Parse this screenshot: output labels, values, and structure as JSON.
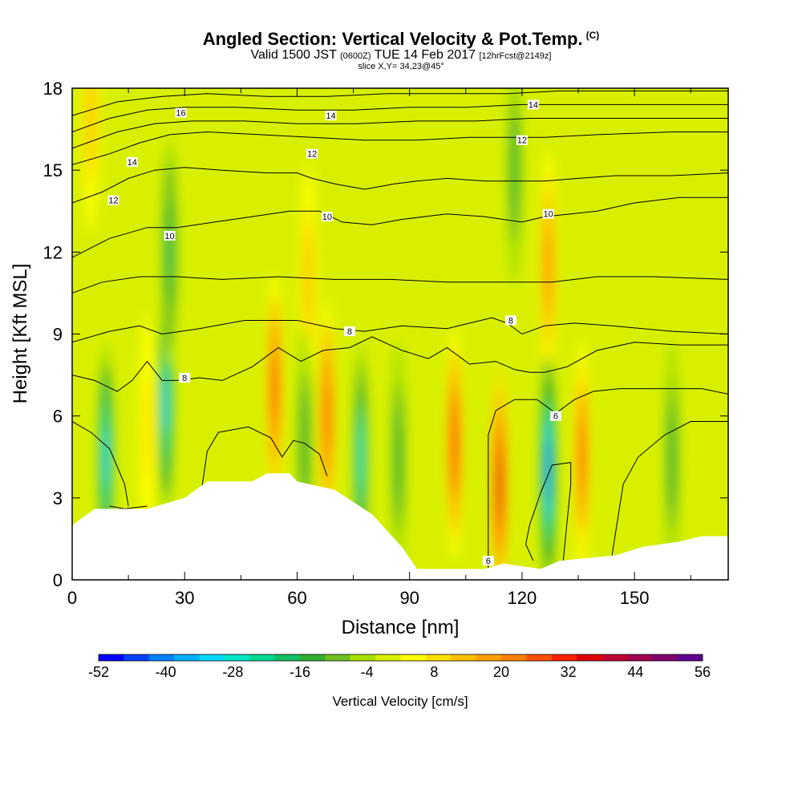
{
  "title": {
    "main": "Angled Section: Vertical Velocity & Pot.Temp.",
    "main_unit": "(C)",
    "valid_prefix": "Valid 1500 JST",
    "valid_z": "(0600Z)",
    "valid_date": "TUE 14 Feb 2017",
    "fcst": "[12hrFcst@2149z]",
    "slice": "slice X,Y= 34,23@45°"
  },
  "chart_data": {
    "type": "heatmap",
    "xlabel": "Distance [nm]",
    "ylabel": "Height [Kft MSL]",
    "xlim": [
      0,
      175
    ],
    "ylim": [
      0,
      18
    ],
    "x_ticks": [
      "0",
      "30",
      "60",
      "90",
      "120",
      "150"
    ],
    "y_ticks": [
      "0",
      "3",
      "6",
      "9",
      "12",
      "15",
      "18"
    ],
    "colorbar": {
      "label": "Vertical Velocity [cm/s]",
      "ticks": [
        "-52",
        "-40",
        "-28",
        "-16",
        "-4",
        "8",
        "20",
        "32",
        "44",
        "56"
      ],
      "min": -52,
      "max": 56,
      "colors": [
        "#0000ff",
        "#0040ff",
        "#0080ff",
        "#00b0ff",
        "#00d8ff",
        "#00e6c8",
        "#00d890",
        "#10c060",
        "#30b030",
        "#70c020",
        "#a8e000",
        "#d8f000",
        "#ffff00",
        "#ffe000",
        "#ffc000",
        "#ffa000",
        "#ff8000",
        "#ff5000",
        "#ff2000",
        "#e00000",
        "#c00030",
        "#a00050",
        "#800070",
        "#600090"
      ]
    },
    "terrain_kft": [
      [
        0,
        2.0
      ],
      [
        3,
        2.3
      ],
      [
        6,
        2.6
      ],
      [
        20,
        2.6
      ],
      [
        30,
        3.0
      ],
      [
        33,
        3.3
      ],
      [
        36,
        3.6
      ],
      [
        48,
        3.6
      ],
      [
        52,
        3.9
      ],
      [
        58,
        3.9
      ],
      [
        60,
        3.6
      ],
      [
        70,
        3.3
      ],
      [
        80,
        2.4
      ],
      [
        88,
        1.2
      ],
      [
        92,
        0.4
      ],
      [
        110,
        0.4
      ],
      [
        115,
        0.6
      ],
      [
        125,
        0.4
      ],
      [
        130,
        0.7
      ],
      [
        145,
        0.9
      ],
      [
        152,
        1.2
      ],
      [
        162,
        1.4
      ],
      [
        168,
        1.6
      ],
      [
        175,
        1.6
      ]
    ],
    "updraft_cores": [
      {
        "x": 20,
        "z": 5.5,
        "value": 10
      },
      {
        "x": 54,
        "z": 7.0,
        "value": 30
      },
      {
        "x": 63,
        "z": 11.0,
        "value": 14
      },
      {
        "x": 68,
        "z": 6.0,
        "value": 28
      },
      {
        "x": 102,
        "z": 5.0,
        "value": 32
      },
      {
        "x": 114,
        "z": 3.5,
        "value": 36
      },
      {
        "x": 127,
        "z": 11.5,
        "value": 24
      },
      {
        "x": 136,
        "z": 4.5,
        "value": 26
      },
      {
        "x": 5,
        "z": 17.0,
        "value": 14
      }
    ],
    "downdraft_cores": [
      {
        "x": 9,
        "z": 4.5,
        "value": -30
      },
      {
        "x": 25,
        "z": 6.5,
        "value": -30
      },
      {
        "x": 26,
        "z": 12.0,
        "value": -18
      },
      {
        "x": 62,
        "z": 5.0,
        "value": -16
      },
      {
        "x": 77,
        "z": 4.5,
        "value": -26
      },
      {
        "x": 87,
        "z": 4.5,
        "value": -16
      },
      {
        "x": 127,
        "z": 4.0,
        "value": -40
      },
      {
        "x": 118,
        "z": 15.0,
        "value": -16
      },
      {
        "x": 160,
        "z": 4.5,
        "value": -16
      }
    ],
    "contours": [
      {
        "label": "6",
        "points": [
          [
            0,
            5.8
          ],
          [
            5,
            5.4
          ],
          [
            10,
            4.8
          ],
          [
            14,
            3.5
          ],
          [
            15,
            2.7
          ]
        ]
      },
      {
        "label": "6",
        "points": [
          [
            34,
            2.8
          ],
          [
            36,
            4.7
          ],
          [
            39,
            5.4
          ],
          [
            47,
            5.6
          ],
          [
            53,
            5.2
          ],
          [
            56,
            4.5
          ],
          [
            59,
            5.1
          ],
          [
            62,
            5.0
          ],
          [
            66,
            4.6
          ],
          [
            68,
            3.8
          ]
        ]
      },
      {
        "label": "6",
        "points": [
          [
            111,
            0.4
          ],
          [
            111,
            5.3
          ],
          [
            113,
            6.2
          ],
          [
            118,
            6.6
          ],
          [
            124,
            6.6
          ],
          [
            129,
            6.1
          ],
          [
            134,
            6.6
          ],
          [
            139,
            6.9
          ],
          [
            146,
            7.0
          ],
          [
            158,
            7.0
          ],
          [
            168,
            7.0
          ],
          [
            175,
            6.8
          ]
        ]
      },
      {
        "label": "",
        "points": [
          [
            131,
            0.7
          ],
          [
            133,
            3.5
          ],
          [
            133,
            4.3
          ],
          [
            128,
            4.2
          ],
          [
            125,
            3.2
          ],
          [
            122,
            2.0
          ],
          [
            121,
            1.3
          ],
          [
            123,
            0.7
          ]
        ]
      },
      {
        "label": "",
        "points": [
          [
            144,
            0.9
          ],
          [
            147,
            3.5
          ],
          [
            151,
            4.5
          ],
          [
            158,
            5.3
          ],
          [
            165,
            5.8
          ],
          [
            175,
            5.8
          ]
        ]
      },
      {
        "label": "",
        "points": [
          [
            10,
            2.7
          ],
          [
            14,
            2.6
          ],
          [
            20,
            2.7
          ]
        ]
      },
      {
        "label": "8",
        "points": [
          [
            0,
            7.5
          ],
          [
            6,
            7.3
          ],
          [
            12,
            6.9
          ],
          [
            16,
            7.3
          ],
          [
            20,
            8.0
          ],
          [
            24,
            7.3
          ],
          [
            28,
            7.3
          ],
          [
            34,
            7.4
          ],
          [
            40,
            7.3
          ],
          [
            48,
            7.8
          ],
          [
            55,
            8.5
          ],
          [
            61,
            8.0
          ],
          [
            67,
            8.4
          ],
          [
            74,
            8.5
          ],
          [
            80,
            8.9
          ],
          [
            88,
            8.4
          ],
          [
            95,
            8.1
          ],
          [
            100,
            8.5
          ],
          [
            106,
            7.9
          ],
          [
            113,
            8.0
          ],
          [
            118,
            7.7
          ],
          [
            122,
            7.6
          ],
          [
            126,
            7.6
          ],
          [
            132,
            7.8
          ],
          [
            140,
            8.4
          ],
          [
            150,
            8.7
          ],
          [
            162,
            8.6
          ],
          [
            175,
            8.6
          ]
        ]
      },
      {
        "label": "8",
        "points": [
          [
            0,
            8.7
          ],
          [
            10,
            9.1
          ],
          [
            18,
            9.3
          ],
          [
            24,
            9.0
          ],
          [
            34,
            9.2
          ],
          [
            46,
            9.5
          ],
          [
            60,
            9.5
          ],
          [
            70,
            9.2
          ],
          [
            78,
            9.1
          ],
          [
            88,
            9.3
          ],
          [
            100,
            9.2
          ],
          [
            106,
            9.4
          ],
          [
            112,
            9.6
          ],
          [
            116,
            9.4
          ],
          [
            120,
            9.0
          ],
          [
            126,
            9.3
          ],
          [
            134,
            9.4
          ],
          [
            144,
            9.3
          ],
          [
            160,
            9.1
          ],
          [
            175,
            9.0
          ]
        ]
      },
      {
        "label": "",
        "points": [
          [
            0,
            10.5
          ],
          [
            8,
            10.9
          ],
          [
            18,
            11.1
          ],
          [
            28,
            11.1
          ],
          [
            40,
            11.0
          ],
          [
            55,
            11.1
          ],
          [
            70,
            11.0
          ],
          [
            85,
            11.0
          ],
          [
            100,
            10.9
          ],
          [
            115,
            10.9
          ],
          [
            128,
            10.9
          ],
          [
            140,
            11.1
          ],
          [
            155,
            11.1
          ],
          [
            175,
            11.0
          ]
        ]
      },
      {
        "label": "10",
        "points": [
          [
            0,
            11.8
          ],
          [
            10,
            12.5
          ],
          [
            20,
            12.9
          ],
          [
            28,
            12.9
          ],
          [
            38,
            13.1
          ],
          [
            48,
            13.3
          ],
          [
            58,
            13.5
          ],
          [
            66,
            13.5
          ],
          [
            72,
            13.1
          ],
          [
            80,
            13.0
          ],
          [
            88,
            13.2
          ],
          [
            100,
            13.4
          ],
          [
            110,
            13.3
          ],
          [
            120,
            13.1
          ],
          [
            126,
            13.3
          ],
          [
            133,
            13.4
          ],
          [
            140,
            13.5
          ],
          [
            150,
            13.8
          ],
          [
            162,
            14.0
          ],
          [
            175,
            14.0
          ]
        ]
      },
      {
        "label": "12",
        "points": [
          [
            0,
            13.8
          ],
          [
            8,
            14.2
          ],
          [
            15,
            14.7
          ],
          [
            22,
            15.0
          ],
          [
            30,
            15.1
          ],
          [
            40,
            15.0
          ],
          [
            52,
            14.9
          ],
          [
            60,
            14.9
          ],
          [
            64,
            14.7
          ],
          [
            70,
            14.5
          ],
          [
            78,
            14.3
          ],
          [
            86,
            14.5
          ],
          [
            92,
            14.6
          ],
          [
            100,
            14.7
          ],
          [
            110,
            14.6
          ],
          [
            118,
            14.6
          ],
          [
            126,
            14.6
          ],
          [
            135,
            14.7
          ],
          [
            145,
            14.8
          ],
          [
            160,
            14.8
          ],
          [
            175,
            14.9
          ]
        ]
      },
      {
        "label": "14",
        "points": [
          [
            0,
            15.2
          ],
          [
            10,
            15.6
          ],
          [
            18,
            16.0
          ],
          [
            26,
            16.3
          ],
          [
            36,
            16.4
          ],
          [
            50,
            16.3
          ],
          [
            64,
            16.2
          ],
          [
            78,
            16.1
          ],
          [
            92,
            16.1
          ],
          [
            106,
            16.2
          ],
          [
            118,
            16.2
          ],
          [
            126,
            16.2
          ],
          [
            140,
            16.3
          ],
          [
            160,
            16.4
          ],
          [
            175,
            16.4
          ]
        ]
      },
      {
        "label": "",
        "points": [
          [
            0,
            15.8
          ],
          [
            12,
            16.4
          ],
          [
            22,
            16.7
          ],
          [
            32,
            16.8
          ],
          [
            46,
            16.8
          ],
          [
            60,
            16.7
          ],
          [
            76,
            16.7
          ],
          [
            92,
            16.8
          ],
          [
            108,
            16.8
          ],
          [
            122,
            16.9
          ],
          [
            140,
            16.9
          ],
          [
            160,
            16.9
          ],
          [
            175,
            16.9
          ]
        ]
      },
      {
        "label": "16",
        "points": [
          [
            0,
            16.4
          ],
          [
            10,
            16.9
          ],
          [
            20,
            17.2
          ],
          [
            30,
            17.3
          ],
          [
            44,
            17.3
          ],
          [
            60,
            17.2
          ],
          [
            75,
            17.2
          ],
          [
            90,
            17.3
          ],
          [
            105,
            17.3
          ],
          [
            120,
            17.4
          ],
          [
            140,
            17.4
          ],
          [
            160,
            17.4
          ],
          [
            175,
            17.4
          ]
        ]
      },
      {
        "label": "14",
        "points": [
          [
            0,
            17.0
          ],
          [
            12,
            17.5
          ],
          [
            24,
            17.7
          ],
          [
            36,
            17.8
          ],
          [
            52,
            17.7
          ],
          [
            68,
            17.7
          ],
          [
            84,
            17.8
          ],
          [
            100,
            17.8
          ],
          [
            116,
            17.8
          ],
          [
            130,
            17.9
          ],
          [
            150,
            17.9
          ],
          [
            175,
            17.9
          ]
        ]
      }
    ],
    "contour_labels": [
      {
        "text": "16",
        "x": 29,
        "z": 17.1
      },
      {
        "text": "14",
        "x": 16,
        "z": 15.3
      },
      {
        "text": "12",
        "x": 11,
        "z": 13.9
      },
      {
        "text": "10",
        "x": 26,
        "z": 12.6
      },
      {
        "text": "14",
        "x": 69,
        "z": 17.0
      },
      {
        "text": "12",
        "x": 64,
        "z": 15.6
      },
      {
        "text": "10",
        "x": 68,
        "z": 13.3
      },
      {
        "text": "14",
        "x": 123,
        "z": 17.4
      },
      {
        "text": "12",
        "x": 120,
        "z": 16.1
      },
      {
        "text": "10",
        "x": 127,
        "z": 13.4
      },
      {
        "text": "8",
        "x": 74,
        "z": 9.1
      },
      {
        "text": "8",
        "x": 30,
        "z": 7.4
      },
      {
        "text": "8",
        "x": 117,
        "z": 9.5
      },
      {
        "text": "6",
        "x": 129,
        "z": 6.0
      },
      {
        "text": "6",
        "x": 111,
        "z": 0.7
      }
    ]
  }
}
